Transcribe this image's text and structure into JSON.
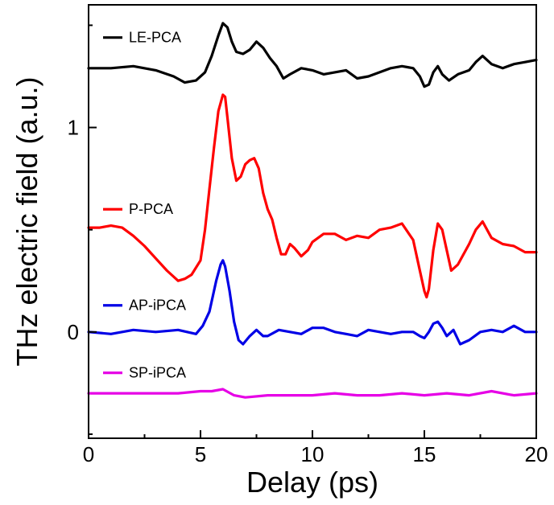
{
  "chart_data": {
    "type": "line",
    "xlabel": "Delay (ps)",
    "ylabel": "THz electric field (a.u.)",
    "xlim": [
      0,
      20
    ],
    "ylim": [
      -0.52,
      1.6
    ],
    "x_ticks": [
      0,
      5,
      10,
      15,
      20
    ],
    "x_tick_labels": [
      "0",
      "5",
      "10",
      "15",
      "20"
    ],
    "y_ticks": [
      0,
      1
    ],
    "y_tick_labels": [
      "0",
      "1"
    ],
    "grid": false,
    "legend_placement": "inline-left",
    "series": [
      {
        "name": "LE-PCA",
        "color": "#000000",
        "x": [
          0,
          1,
          2,
          3,
          3.8,
          4.3,
          4.8,
          5.2,
          5.5,
          5.8,
          6.0,
          6.2,
          6.4,
          6.6,
          6.9,
          7.2,
          7.5,
          7.8,
          8.1,
          8.4,
          8.7,
          9.0,
          9.5,
          10,
          10.5,
          11,
          11.5,
          12,
          12.5,
          13,
          13.5,
          14,
          14.5,
          14.8,
          15.0,
          15.2,
          15.4,
          15.6,
          15.8,
          16.1,
          16.5,
          17,
          17.3,
          17.6,
          18,
          18.5,
          19,
          19.5,
          20
        ],
        "y": [
          1.29,
          1.29,
          1.3,
          1.28,
          1.25,
          1.22,
          1.23,
          1.27,
          1.35,
          1.45,
          1.51,
          1.49,
          1.42,
          1.37,
          1.36,
          1.38,
          1.42,
          1.39,
          1.34,
          1.3,
          1.24,
          1.26,
          1.29,
          1.28,
          1.26,
          1.27,
          1.28,
          1.24,
          1.25,
          1.27,
          1.29,
          1.3,
          1.29,
          1.25,
          1.2,
          1.21,
          1.27,
          1.3,
          1.26,
          1.23,
          1.26,
          1.28,
          1.32,
          1.35,
          1.31,
          1.29,
          1.31,
          1.32,
          1.33
        ]
      },
      {
        "name": "P-PCA",
        "color": "#ff0000",
        "x": [
          0,
          0.5,
          1,
          1.5,
          2,
          2.5,
          3,
          3.5,
          4,
          4.3,
          4.6,
          5.0,
          5.2,
          5.4,
          5.6,
          5.8,
          6.0,
          6.1,
          6.2,
          6.4,
          6.6,
          6.8,
          7.0,
          7.2,
          7.4,
          7.6,
          7.8,
          8.0,
          8.2,
          8.4,
          8.6,
          8.8,
          9.0,
          9.2,
          9.5,
          9.8,
          10,
          10.5,
          11,
          11.5,
          12,
          12.5,
          13,
          13.5,
          14,
          14.5,
          14.8,
          15.0,
          15.1,
          15.2,
          15.4,
          15.6,
          15.8,
          16.0,
          16.2,
          16.5,
          17,
          17.3,
          17.6,
          18,
          18.5,
          19,
          19.5,
          20
        ],
        "y": [
          0.51,
          0.51,
          0.52,
          0.51,
          0.47,
          0.42,
          0.36,
          0.3,
          0.25,
          0.26,
          0.28,
          0.35,
          0.5,
          0.7,
          0.9,
          1.08,
          1.16,
          1.15,
          1.05,
          0.85,
          0.74,
          0.76,
          0.82,
          0.84,
          0.85,
          0.8,
          0.68,
          0.6,
          0.55,
          0.46,
          0.38,
          0.38,
          0.43,
          0.41,
          0.37,
          0.4,
          0.44,
          0.48,
          0.48,
          0.45,
          0.47,
          0.46,
          0.5,
          0.51,
          0.53,
          0.45,
          0.3,
          0.2,
          0.17,
          0.21,
          0.4,
          0.53,
          0.5,
          0.4,
          0.3,
          0.33,
          0.43,
          0.5,
          0.54,
          0.46,
          0.43,
          0.42,
          0.39,
          0.39
        ]
      },
      {
        "name": "AP-iPCA",
        "color": "#0000e6",
        "x": [
          0,
          1,
          2,
          3,
          4,
          4.8,
          5.1,
          5.4,
          5.7,
          5.9,
          6.0,
          6.1,
          6.3,
          6.5,
          6.7,
          6.9,
          7.2,
          7.5,
          7.8,
          8.0,
          8.5,
          9,
          9.5,
          10,
          10.5,
          11,
          11.5,
          12,
          12.5,
          13,
          13.5,
          14,
          14.5,
          14.8,
          15.0,
          15.2,
          15.4,
          15.6,
          15.8,
          16.0,
          16.3,
          16.6,
          17,
          17.5,
          18,
          18.5,
          19,
          19.5,
          20
        ],
        "y": [
          0.0,
          -0.01,
          0.01,
          0.0,
          0.01,
          -0.01,
          0.03,
          0.1,
          0.25,
          0.33,
          0.35,
          0.32,
          0.2,
          0.05,
          -0.04,
          -0.06,
          -0.02,
          0.01,
          -0.02,
          -0.02,
          0.01,
          0.0,
          -0.01,
          0.02,
          0.02,
          0.0,
          -0.01,
          -0.02,
          0.01,
          0.0,
          -0.01,
          0.0,
          0.0,
          -0.02,
          -0.03,
          0.0,
          0.04,
          0.05,
          0.02,
          -0.02,
          0.01,
          -0.06,
          -0.04,
          0.0,
          0.01,
          0.0,
          0.03,
          0.0,
          0.0
        ]
      },
      {
        "name": "SP-iPCA",
        "color": "#e600e6",
        "x": [
          0,
          1,
          2,
          3,
          4,
          5,
          5.5,
          6.0,
          6.5,
          7,
          8,
          9,
          10,
          11,
          12,
          13,
          14,
          15,
          16,
          17,
          18,
          19,
          20
        ],
        "y": [
          -0.3,
          -0.3,
          -0.3,
          -0.3,
          -0.3,
          -0.29,
          -0.29,
          -0.28,
          -0.31,
          -0.32,
          -0.31,
          -0.31,
          -0.31,
          -0.3,
          -0.31,
          -0.31,
          -0.3,
          -0.31,
          -0.3,
          -0.31,
          -0.29,
          -0.31,
          -0.3
        ]
      }
    ]
  }
}
